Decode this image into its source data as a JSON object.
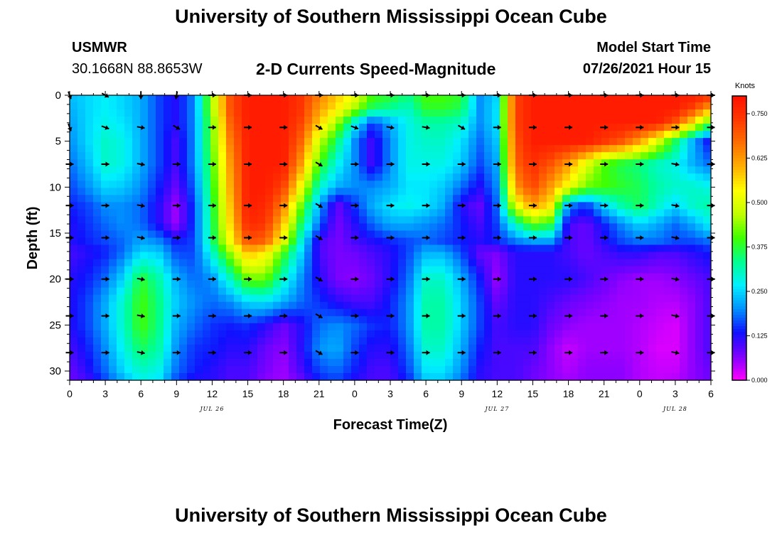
{
  "header": {
    "title": "University of Southern Mississippi Ocean Cube",
    "station": "USMWR",
    "coords": "30.1668N  88.8653W",
    "subtitle": "2-D Currents Speed-Magnitude",
    "model_label": "Model Start Time",
    "model_time": "07/26/2021 Hour 15"
  },
  "footer": {
    "title": "University of Southern Mississippi Ocean Cube"
  },
  "chart_data": {
    "type": "heatmap",
    "title": "2-D Currents Speed-Magnitude",
    "xlabel": "Forecast Time(Z)",
    "ylabel": "Depth (ft)",
    "x_ticks": [
      "0",
      "3",
      "6",
      "9",
      "12",
      "15",
      "18",
      "21",
      "0",
      "3",
      "6",
      "9",
      "12",
      "15",
      "18",
      "21",
      "0",
      "3",
      "6"
    ],
    "date_labels": [
      {
        "label": "JUL 26",
        "tick_index": 4
      },
      {
        "label": "JUL 27",
        "tick_index": 12
      },
      {
        "label": "JUL 28",
        "tick_index": 17
      }
    ],
    "x_range_hours": [
      0,
      54
    ],
    "y_ticks": [
      0,
      5,
      10,
      15,
      20,
      25,
      30
    ],
    "ylim": [
      0,
      31
    ],
    "colorbar": {
      "label": "Knots",
      "ticks": [
        "0.750",
        "0.625",
        "0.500",
        "0.375",
        "0.250",
        "0.125",
        "0.000"
      ],
      "range": [
        0,
        0.8
      ],
      "colors": [
        "#ff00ff",
        "#8000ff",
        "#1010ff",
        "#0090ff",
        "#00f0ff",
        "#00ff90",
        "#40ff00",
        "#c0ff00",
        "#ffff00",
        "#ffb000",
        "#ff7000",
        "#ff3800",
        "#ff1000"
      ]
    },
    "speed_field": {
      "hours": [
        0,
        1.5,
        3,
        4.5,
        6,
        7.5,
        9,
        10.5,
        12,
        13.5,
        15,
        16.5,
        18,
        19.5,
        21,
        22.5,
        24,
        25.5,
        27,
        28.5,
        30,
        31.5,
        33,
        34.5,
        36,
        37.5,
        39,
        40.5,
        42,
        43.5,
        45,
        46.5,
        48,
        49.5,
        51,
        52.5,
        54
      ],
      "depths": [
        0,
        1.5,
        3,
        5,
        7.5,
        10,
        12,
        14,
        16,
        17,
        20,
        22.5,
        25,
        27.5,
        30,
        31
      ],
      "values_knots": [
        [
          0.23,
          0.25,
          0.27,
          0.25,
          0.22,
          0.16,
          0.12,
          0.2,
          0.45,
          0.7,
          0.78,
          0.78,
          0.78,
          0.74,
          0.65,
          0.58,
          0.52,
          0.4,
          0.38,
          0.34,
          0.4,
          0.4,
          0.38,
          0.2,
          0.25,
          0.72,
          0.78,
          0.78,
          0.78,
          0.78,
          0.78,
          0.78,
          0.78,
          0.78,
          0.78,
          0.78,
          0.75
        ],
        [
          0.22,
          0.25,
          0.27,
          0.25,
          0.22,
          0.16,
          0.12,
          0.2,
          0.45,
          0.7,
          0.78,
          0.78,
          0.78,
          0.74,
          0.62,
          0.55,
          0.45,
          0.35,
          0.33,
          0.3,
          0.38,
          0.38,
          0.36,
          0.2,
          0.26,
          0.72,
          0.78,
          0.78,
          0.78,
          0.78,
          0.78,
          0.78,
          0.78,
          0.78,
          0.78,
          0.72,
          0.6
        ],
        [
          0.21,
          0.25,
          0.28,
          0.26,
          0.22,
          0.16,
          0.12,
          0.2,
          0.42,
          0.68,
          0.78,
          0.78,
          0.78,
          0.72,
          0.58,
          0.45,
          0.28,
          0.15,
          0.22,
          0.28,
          0.32,
          0.32,
          0.3,
          0.2,
          0.26,
          0.72,
          0.78,
          0.78,
          0.78,
          0.78,
          0.78,
          0.78,
          0.78,
          0.78,
          0.7,
          0.55,
          0.38
        ],
        [
          0.2,
          0.25,
          0.3,
          0.28,
          0.22,
          0.16,
          0.1,
          0.2,
          0.42,
          0.65,
          0.78,
          0.78,
          0.78,
          0.68,
          0.48,
          0.35,
          0.2,
          0.1,
          0.2,
          0.28,
          0.3,
          0.3,
          0.26,
          0.18,
          0.24,
          0.7,
          0.78,
          0.78,
          0.78,
          0.78,
          0.74,
          0.7,
          0.62,
          0.5,
          0.36,
          0.22,
          0.12
        ],
        [
          0.18,
          0.23,
          0.3,
          0.28,
          0.22,
          0.16,
          0.1,
          0.2,
          0.4,
          0.62,
          0.78,
          0.78,
          0.78,
          0.62,
          0.4,
          0.28,
          0.2,
          0.1,
          0.2,
          0.28,
          0.28,
          0.28,
          0.24,
          0.16,
          0.22,
          0.68,
          0.75,
          0.7,
          0.62,
          0.5,
          0.4,
          0.36,
          0.34,
          0.3,
          0.28,
          0.22,
          0.18
        ],
        [
          0.16,
          0.2,
          0.25,
          0.24,
          0.2,
          0.14,
          0.08,
          0.18,
          0.38,
          0.6,
          0.78,
          0.78,
          0.72,
          0.52,
          0.3,
          0.22,
          0.2,
          0.2,
          0.22,
          0.26,
          0.26,
          0.24,
          0.18,
          0.12,
          0.2,
          0.62,
          0.72,
          0.62,
          0.52,
          0.42,
          0.4,
          0.38,
          0.36,
          0.32,
          0.3,
          0.3,
          0.28
        ],
        [
          0.14,
          0.16,
          0.2,
          0.2,
          0.18,
          0.12,
          0.05,
          0.16,
          0.36,
          0.58,
          0.78,
          0.76,
          0.65,
          0.42,
          0.22,
          0.08,
          0.15,
          0.22,
          0.26,
          0.28,
          0.26,
          0.22,
          0.12,
          0.08,
          0.18,
          0.5,
          0.62,
          0.55,
          0.2,
          0.15,
          0.25,
          0.32,
          0.36,
          0.3,
          0.25,
          0.3,
          0.32
        ],
        [
          0.12,
          0.15,
          0.18,
          0.2,
          0.18,
          0.12,
          0.05,
          0.16,
          0.35,
          0.56,
          0.76,
          0.74,
          0.58,
          0.35,
          0.18,
          0.07,
          0.12,
          0.18,
          0.22,
          0.22,
          0.2,
          0.18,
          0.14,
          0.1,
          0.16,
          0.3,
          0.42,
          0.38,
          0.1,
          0.08,
          0.14,
          0.2,
          0.25,
          0.22,
          0.18,
          0.22,
          0.28
        ],
        [
          0.12,
          0.14,
          0.16,
          0.18,
          0.22,
          0.2,
          0.14,
          0.16,
          0.34,
          0.52,
          0.7,
          0.68,
          0.5,
          0.28,
          0.1,
          0.07,
          0.1,
          0.12,
          0.14,
          0.16,
          0.18,
          0.16,
          0.14,
          0.12,
          0.14,
          0.18,
          0.2,
          0.2,
          0.1,
          0.08,
          0.12,
          0.16,
          0.18,
          0.18,
          0.16,
          0.16,
          0.18
        ],
        [
          0.1,
          0.12,
          0.14,
          0.18,
          0.25,
          0.24,
          0.16,
          0.16,
          0.3,
          0.45,
          0.6,
          0.55,
          0.4,
          0.25,
          0.1,
          0.07,
          0.08,
          0.1,
          0.12,
          0.16,
          0.22,
          0.22,
          0.16,
          0.08,
          0.07,
          0.12,
          0.12,
          0.12,
          0.1,
          0.08,
          0.1,
          0.12,
          0.12,
          0.1,
          0.1,
          0.12,
          0.14
        ],
        [
          0.12,
          0.14,
          0.18,
          0.25,
          0.38,
          0.32,
          0.22,
          0.18,
          0.2,
          0.3,
          0.42,
          0.42,
          0.3,
          0.2,
          0.12,
          0.07,
          0.06,
          0.08,
          0.12,
          0.18,
          0.3,
          0.3,
          0.22,
          0.14,
          0.05,
          0.12,
          0.12,
          0.12,
          0.12,
          0.1,
          0.08,
          0.06,
          0.05,
          0.05,
          0.06,
          0.08,
          0.1
        ],
        [
          0.12,
          0.16,
          0.22,
          0.3,
          0.4,
          0.34,
          0.24,
          0.2,
          0.18,
          0.2,
          0.25,
          0.26,
          0.22,
          0.18,
          0.15,
          0.12,
          0.1,
          0.1,
          0.14,
          0.2,
          0.32,
          0.32,
          0.24,
          0.16,
          0.08,
          0.12,
          0.12,
          0.1,
          0.08,
          0.07,
          0.06,
          0.05,
          0.05,
          0.04,
          0.04,
          0.06,
          0.1
        ],
        [
          0.12,
          0.16,
          0.22,
          0.3,
          0.4,
          0.34,
          0.22,
          0.18,
          0.15,
          0.14,
          0.15,
          0.12,
          0.08,
          0.12,
          0.18,
          0.2,
          0.18,
          0.15,
          0.14,
          0.2,
          0.32,
          0.32,
          0.24,
          0.16,
          0.1,
          0.12,
          0.12,
          0.08,
          0.06,
          0.05,
          0.05,
          0.05,
          0.04,
          0.03,
          0.02,
          0.06,
          0.1
        ],
        [
          0.1,
          0.14,
          0.2,
          0.28,
          0.36,
          0.32,
          0.2,
          0.15,
          0.14,
          0.12,
          0.12,
          0.08,
          0.06,
          0.12,
          0.2,
          0.22,
          0.16,
          0.12,
          0.12,
          0.18,
          0.3,
          0.3,
          0.22,
          0.14,
          0.1,
          0.1,
          0.1,
          0.06,
          0.03,
          0.05,
          0.05,
          0.05,
          0.04,
          0.02,
          0.02,
          0.06,
          0.1
        ],
        [
          0.08,
          0.12,
          0.18,
          0.25,
          0.3,
          0.28,
          0.18,
          0.14,
          0.12,
          0.1,
          0.1,
          0.07,
          0.05,
          0.1,
          0.16,
          0.18,
          0.14,
          0.1,
          0.1,
          0.16,
          0.26,
          0.26,
          0.2,
          0.12,
          0.1,
          0.1,
          0.08,
          0.06,
          0.04,
          0.06,
          0.06,
          0.06,
          0.04,
          0.03,
          0.03,
          0.06,
          0.08
        ],
        [
          0.08,
          0.1,
          0.16,
          0.22,
          0.28,
          0.26,
          0.16,
          0.12,
          0.12,
          0.1,
          0.1,
          0.06,
          0.05,
          0.08,
          0.14,
          0.16,
          0.12,
          0.1,
          0.1,
          0.14,
          0.24,
          0.24,
          0.18,
          0.12,
          0.1,
          0.1,
          0.08,
          0.06,
          0.05,
          0.06,
          0.06,
          0.06,
          0.04,
          0.03,
          0.04,
          0.06,
          0.08
        ]
      ]
    },
    "vectors": {
      "hours": [
        0,
        3,
        6,
        9,
        12,
        15,
        18,
        21,
        24,
        27,
        30,
        33,
        36,
        39,
        42,
        45,
        48,
        51,
        54
      ],
      "depths": [
        0,
        3.5,
        7.5,
        12,
        15.5,
        20,
        24,
        28
      ],
      "directions_deg": [
        [
          70,
          30,
          90,
          100,
          0,
          0,
          0,
          0,
          0,
          0,
          0,
          0,
          0,
          0,
          0,
          0,
          0,
          0,
          0
        ],
        [
          70,
          20,
          10,
          30,
          0,
          0,
          0,
          30,
          20,
          10,
          10,
          30,
          0,
          0,
          0,
          0,
          0,
          0,
          0
        ],
        [
          0,
          0,
          10,
          0,
          0,
          0,
          0,
          30,
          0,
          0,
          0,
          0,
          0,
          0,
          0,
          0,
          0,
          10,
          0
        ],
        [
          0,
          0,
          10,
          0,
          0,
          0,
          0,
          30,
          0,
          0,
          0,
          0,
          0,
          0,
          0,
          0,
          0,
          10,
          0
        ],
        [
          0,
          0,
          10,
          0,
          0,
          0,
          0,
          30,
          0,
          0,
          0,
          0,
          0,
          0,
          0,
          0,
          0,
          10,
          0
        ],
        [
          0,
          0,
          10,
          0,
          0,
          0,
          0,
          30,
          0,
          0,
          0,
          0,
          0,
          0,
          0,
          0,
          0,
          10,
          0
        ],
        [
          0,
          0,
          10,
          0,
          0,
          0,
          0,
          30,
          0,
          0,
          0,
          0,
          0,
          0,
          0,
          0,
          0,
          10,
          0
        ],
        [
          0,
          0,
          10,
          0,
          0,
          0,
          0,
          30,
          0,
          0,
          0,
          0,
          0,
          0,
          0,
          0,
          0,
          10,
          0
        ]
      ]
    }
  }
}
